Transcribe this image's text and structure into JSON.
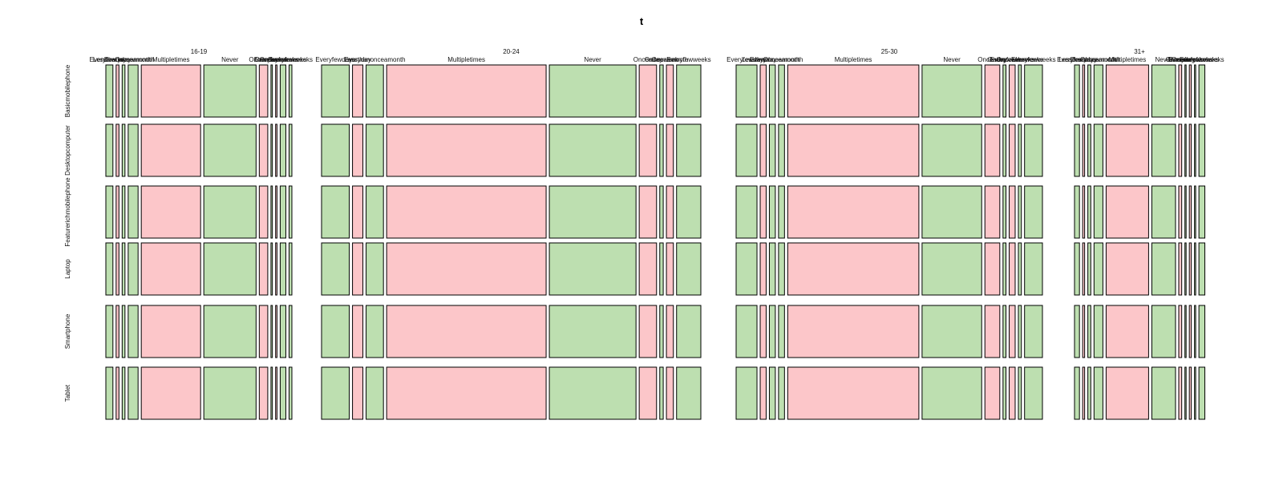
{
  "chart_data": {
    "type": "mosaic",
    "title": "t",
    "colors": {
      "positive": "#bddfb0",
      "negative": "#fcc6c9",
      "border": "#000000",
      "background": "#ffffff"
    },
    "groups": [
      {
        "label": "16-19",
        "columns": [
          {
            "label": "Everyfewdays",
            "value": 5
          },
          {
            "label": "Everyday",
            "value": 2
          },
          {
            "label": "Lessthanonceamonth",
            "value": 2
          },
          {
            "label": "Onceamonth",
            "value": 7
          },
          {
            "label": "Multipletimes",
            "value": 42
          },
          {
            "label": "Never",
            "value": 37
          },
          {
            "label": "Onceaday",
            "value": 6
          },
          {
            "label": "Onceaweek",
            "value": 1
          },
          {
            "label": "Everyfewweeks",
            "value": 1
          },
          {
            "label": "Onceafewweeks",
            "value": 4
          },
          {
            "label": "Everyfewweeks",
            "value": 2
          }
        ],
        "rows": [
          {
            "label": "Basicmobilephone",
            "signs": [
              "+",
              "-",
              "+",
              "+",
              "-",
              "+",
              "-",
              "+",
              "-",
              "+",
              "+"
            ]
          },
          {
            "label": "Desktopcomputer",
            "signs": [
              "+",
              "-",
              "+",
              "+",
              "-",
              "+",
              "-",
              "+",
              "-",
              "+",
              "+"
            ]
          },
          {
            "label": "Featurerichmobilephone",
            "signs": [
              "+",
              "-",
              "+",
              "+",
              "-",
              "+",
              "-",
              "+",
              "-",
              "+",
              "+"
            ]
          },
          {
            "label": "Laptop",
            "signs": [
              "+",
              "-",
              "+",
              "+",
              "-",
              "+",
              "-",
              "+",
              "-",
              "+",
              "+"
            ]
          },
          {
            "label": "Smartphone",
            "signs": [
              "+",
              "-",
              "+",
              "+",
              "-",
              "+",
              "-",
              "+",
              "-",
              "+",
              "+"
            ]
          },
          {
            "label": "Tablet",
            "signs": [
              "+",
              "-",
              "+",
              "+",
              "-",
              "+",
              "-",
              "+",
              "-",
              "+",
              "+"
            ]
          }
        ]
      },
      {
        "label": "20-24",
        "columns": [
          {
            "label": "Everyfewdays",
            "value": 8
          },
          {
            "label": "Everyday",
            "value": 3
          },
          {
            "label": "Lessthanonceamonth",
            "value": 5
          },
          {
            "label": "Multipletimes",
            "value": 46
          },
          {
            "label": "Never",
            "value": 25
          },
          {
            "label": "Onceaday",
            "value": 5
          },
          {
            "label": "Onceaweek",
            "value": 1
          },
          {
            "label": "Onceamonth",
            "value": 2
          },
          {
            "label": "Everyfewweeks",
            "value": 7
          }
        ],
        "rows": [
          {
            "label": "Basicmobilephone",
            "signs": [
              "+",
              "-",
              "+",
              "-",
              "+",
              "-",
              "+",
              "-",
              "+"
            ]
          },
          {
            "label": "Desktopcomputer",
            "signs": [
              "+",
              "-",
              "+",
              "-",
              "+",
              "-",
              "+",
              "-",
              "+"
            ]
          },
          {
            "label": "Featurerichmobilephone",
            "signs": [
              "+",
              "-",
              "+",
              "-",
              "+",
              "-",
              "+",
              "-",
              "+"
            ]
          },
          {
            "label": "Laptop",
            "signs": [
              "+",
              "-",
              "+",
              "-",
              "+",
              "-",
              "+",
              "-",
              "+"
            ]
          },
          {
            "label": "Smartphone",
            "signs": [
              "+",
              "-",
              "+",
              "-",
              "+",
              "-",
              "+",
              "-",
              "+"
            ]
          },
          {
            "label": "Tablet",
            "signs": [
              "+",
              "-",
              "+",
              "-",
              "+",
              "-",
              "+",
              "-",
              "+"
            ]
          }
        ]
      },
      {
        "label": "25-30",
        "columns": [
          {
            "label": "Everyfewdays",
            "value": 7
          },
          {
            "label": "Everyday",
            "value": 2
          },
          {
            "label": "Lessthanonceamonth",
            "value": 2
          },
          {
            "label": "Onceamonth",
            "value": 2
          },
          {
            "label": "Multipletimes",
            "value": 44
          },
          {
            "label": "Never",
            "value": 20
          },
          {
            "label": "Onceaday",
            "value": 5
          },
          {
            "label": "Onceaweek",
            "value": 1
          },
          {
            "label": "Everyfewweeks",
            "value": 2
          },
          {
            "label": "Onceafewweeks",
            "value": 1
          },
          {
            "label": "Everyfewweeks",
            "value": 6
          }
        ],
        "rows": [
          {
            "label": "Basicmobilephone",
            "signs": [
              "+",
              "-",
              "+",
              "+",
              "-",
              "+",
              "-",
              "+",
              "-",
              "+",
              "+"
            ]
          },
          {
            "label": "Desktopcomputer",
            "signs": [
              "+",
              "-",
              "+",
              "+",
              "-",
              "+",
              "-",
              "+",
              "-",
              "+",
              "+"
            ]
          },
          {
            "label": "Featurerichmobilephone",
            "signs": [
              "+",
              "-",
              "+",
              "+",
              "-",
              "+",
              "-",
              "+",
              "-",
              "+",
              "+"
            ]
          },
          {
            "label": "Laptop",
            "signs": [
              "+",
              "-",
              "+",
              "+",
              "-",
              "+",
              "-",
              "+",
              "-",
              "+",
              "+"
            ]
          },
          {
            "label": "Smartphone",
            "signs": [
              "+",
              "-",
              "+",
              "+",
              "-",
              "+",
              "-",
              "+",
              "-",
              "+",
              "+"
            ]
          },
          {
            "label": "Tablet",
            "signs": [
              "+",
              "-",
              "+",
              "+",
              "-",
              "+",
              "-",
              "+",
              "-",
              "+",
              "+"
            ]
          }
        ]
      },
      {
        "label": "31+",
        "columns": [
          {
            "label": "Everyfewdays",
            "value": 5
          },
          {
            "label": "Everyday",
            "value": 2
          },
          {
            "label": "Lessthanonceamonth",
            "value": 3
          },
          {
            "label": "Onceamonth",
            "value": 9
          },
          {
            "label": "Multipletimes",
            "value": 43
          },
          {
            "label": "Never",
            "value": 24
          },
          {
            "label": "Onceaday",
            "value": 3
          },
          {
            "label": "Onceaweek",
            "value": 1
          },
          {
            "label": "Everyfewweeks",
            "value": 2
          },
          {
            "label": "Onceafewweeks",
            "value": 1
          },
          {
            "label": "Everyfewweeks",
            "value": 6
          }
        ],
        "rows": [
          {
            "label": "Basicmobilephone",
            "signs": [
              "+",
              "-",
              "+",
              "+",
              "-",
              "+",
              "-",
              "+",
              "-",
              "+",
              "+"
            ]
          },
          {
            "label": "Desktopcomputer",
            "signs": [
              "+",
              "-",
              "+",
              "+",
              "-",
              "+",
              "-",
              "+",
              "-",
              "+",
              "+"
            ]
          },
          {
            "label": "Featurerichmobilephone",
            "signs": [
              "+",
              "-",
              "+",
              "+",
              "-",
              "+",
              "-",
              "+",
              "-",
              "+",
              "+"
            ]
          },
          {
            "label": "Laptop",
            "signs": [
              "+",
              "-",
              "+",
              "+",
              "-",
              "+",
              "-",
              "+",
              "-",
              "+",
              "+"
            ]
          },
          {
            "label": "Smartphone",
            "signs": [
              "+",
              "-",
              "+",
              "+",
              "-",
              "+",
              "-",
              "+",
              "-",
              "+",
              "+"
            ]
          },
          {
            "label": "Tablet",
            "signs": [
              "+",
              "-",
              "+",
              "+",
              "-",
              "+",
              "-",
              "+",
              "-",
              "+",
              "+"
            ]
          }
        ]
      }
    ]
  }
}
